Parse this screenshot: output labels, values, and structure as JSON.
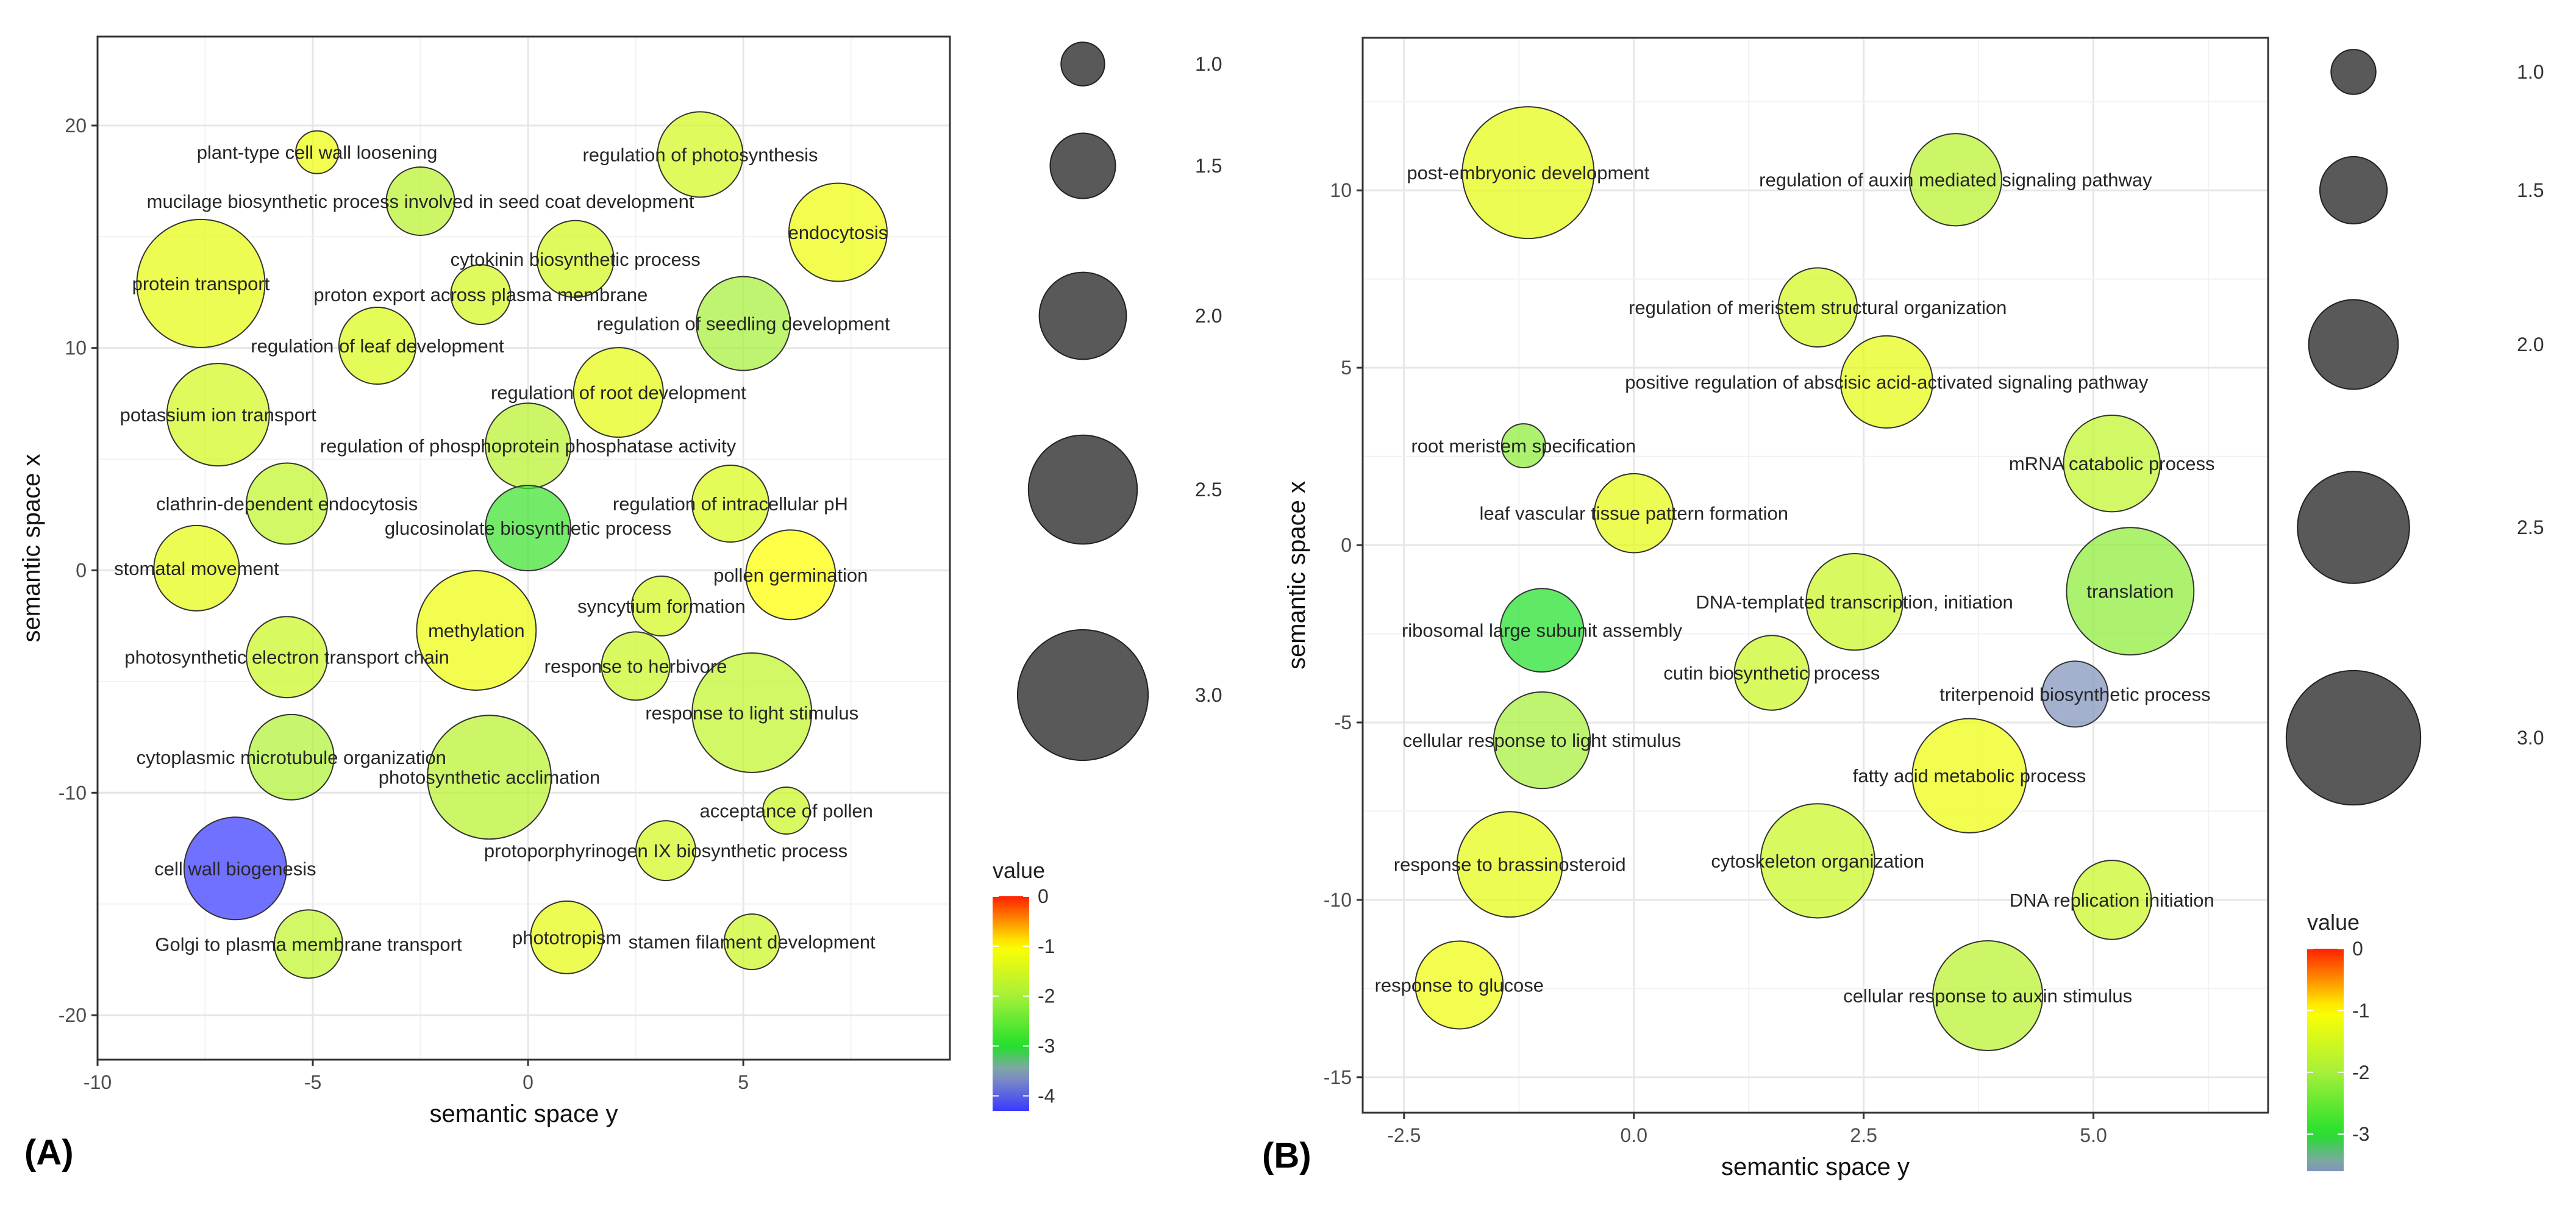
{
  "chart_data": [
    {
      "type": "scatter",
      "panel_label": "(A)",
      "xlabel": "semantic space y",
      "ylabel": "semantic space x",
      "xlim": [
        -10,
        9.8
      ],
      "ylim": [
        -22,
        24
      ],
      "x_ticks": [
        -10,
        -5,
        0,
        5
      ],
      "x_tick_labels": [
        "-10",
        "-5",
        "0",
        "5"
      ],
      "y_ticks": [
        -20,
        -10,
        0,
        10,
        20
      ],
      "y_tick_labels": [
        "-20",
        "-10",
        "0",
        "10",
        "20"
      ],
      "grid": true,
      "size_legend": {
        "values": [
          1.0,
          1.5,
          2.0,
          2.5,
          3.0
        ],
        "labels": [
          "1.0",
          "1.5",
          "2.0",
          "2.5",
          "3.0"
        ]
      },
      "color_legend": {
        "title": "value",
        "range": [
          -4.3,
          0
        ],
        "ticks": [
          0,
          -1,
          -2,
          -3,
          -4
        ],
        "tick_labels": [
          "0",
          "-1",
          "-2",
          "-3",
          "-4"
        ]
      },
      "points": [
        {
          "label": "plant-type cell wall loosening",
          "x": -4.9,
          "y": 18.8,
          "size": 1.0,
          "value": -1.2
        },
        {
          "label": "regulation of photosynthesis",
          "x": 4.0,
          "y": 18.7,
          "size": 2.0,
          "value": -1.5
        },
        {
          "label": "mucilage biosynthetic process involved in seed coat development",
          "x": -2.5,
          "y": 16.6,
          "size": 1.6,
          "value": -1.8
        },
        {
          "label": "endocytosis",
          "x": 7.2,
          "y": 15.2,
          "size": 2.3,
          "value": -1.2
        },
        {
          "label": "cytokinin biosynthetic process",
          "x": 1.1,
          "y": 14.0,
          "size": 1.8,
          "value": -1.5
        },
        {
          "label": "protein transport",
          "x": -7.6,
          "y": 12.9,
          "size": 3.0,
          "value": -1.3
        },
        {
          "label": "proton export across plasma membrane",
          "x": -1.1,
          "y": 12.4,
          "size": 1.4,
          "value": -1.5
        },
        {
          "label": "regulation of seedling development",
          "x": 5.0,
          "y": 11.1,
          "size": 2.2,
          "value": -2.0
        },
        {
          "label": "regulation of leaf development",
          "x": -3.5,
          "y": 10.1,
          "size": 1.8,
          "value": -1.4
        },
        {
          "label": "regulation of root development",
          "x": 2.1,
          "y": 8.0,
          "size": 2.1,
          "value": -1.3
        },
        {
          "label": "potassium ion transport",
          "x": -7.2,
          "y": 7.0,
          "size": 2.4,
          "value": -1.5
        },
        {
          "label": "regulation of phosphoprotein phosphatase activity",
          "x": 0.0,
          "y": 5.6,
          "size": 2.0,
          "value": -1.8
        },
        {
          "label": "clathrin-dependent endocytosis",
          "x": -5.6,
          "y": 3.0,
          "size": 1.9,
          "value": -1.7
        },
        {
          "label": "regulation of intracellular pH",
          "x": 4.7,
          "y": 3.0,
          "size": 1.8,
          "value": -1.4
        },
        {
          "label": "glucosinolate biosynthetic process",
          "x": 0.0,
          "y": 1.9,
          "size": 2.0,
          "value": -2.8
        },
        {
          "label": "stomatal movement",
          "x": -7.7,
          "y": 0.1,
          "size": 2.0,
          "value": -1.3
        },
        {
          "label": "pollen germination",
          "x": 6.1,
          "y": -0.2,
          "size": 2.1,
          "value": -1.0
        },
        {
          "label": "syncytium formation",
          "x": 3.1,
          "y": -1.6,
          "size": 1.4,
          "value": -1.5
        },
        {
          "label": "methylation",
          "x": -1.2,
          "y": -2.7,
          "size": 2.8,
          "value": -1.2
        },
        {
          "label": "photosynthetic electron transport chain",
          "x": -5.6,
          "y": -3.9,
          "size": 1.9,
          "value": -1.6
        },
        {
          "label": "response to herbivore",
          "x": 2.5,
          "y": -4.3,
          "size": 1.6,
          "value": -1.6
        },
        {
          "label": "response to light stimulus",
          "x": 5.2,
          "y": -6.4,
          "size": 2.8,
          "value": -1.7
        },
        {
          "label": "cytoplasmic microtubule organization",
          "x": -5.5,
          "y": -8.4,
          "size": 2.0,
          "value": -1.9
        },
        {
          "label": "photosynthetic acclimation",
          "x": -0.9,
          "y": -9.3,
          "size": 2.9,
          "value": -1.8
        },
        {
          "label": "acceptance of pollen",
          "x": 6.0,
          "y": -10.8,
          "size": 1.1,
          "value": -1.6
        },
        {
          "label": "protoporphyrinogen IX biosynthetic process",
          "x": 3.2,
          "y": -12.6,
          "size": 1.4,
          "value": -1.5
        },
        {
          "label": "cell wall biogenesis",
          "x": -6.8,
          "y": -13.4,
          "size": 2.4,
          "value": -4.3
        },
        {
          "label": "Golgi to plasma membrane transport",
          "x": -5.1,
          "y": -16.8,
          "size": 1.6,
          "value": -1.7
        },
        {
          "label": "phototropism",
          "x": 0.9,
          "y": -16.5,
          "size": 1.7,
          "value": -1.3
        },
        {
          "label": "stamen filament development",
          "x": 5.2,
          "y": -16.7,
          "size": 1.3,
          "value": -1.6
        }
      ]
    },
    {
      "type": "scatter",
      "panel_label": "(B)",
      "xlabel": "semantic space y",
      "ylabel": "semantic space x",
      "xlim": [
        -2.95,
        6.9
      ],
      "ylim": [
        -16.0,
        14.3
      ],
      "x_ticks": [
        -2.5,
        0.0,
        2.5,
        5.0
      ],
      "x_tick_labels": [
        "-2.5",
        "0.0",
        "2.5",
        "5.0"
      ],
      "y_ticks": [
        10,
        5,
        0,
        -5,
        -10,
        -15
      ],
      "y_tick_labels": [
        "10",
        "5",
        "0",
        "-5",
        "-10",
        "-15"
      ],
      "grid": true,
      "size_legend": {
        "values": [
          1.0,
          1.5,
          2.0,
          2.5,
          3.0
        ],
        "labels": [
          "1.0",
          "1.5",
          "2.0",
          "2.5",
          "3.0"
        ]
      },
      "color_legend": {
        "title": "value",
        "range": [
          -3.6,
          0
        ],
        "ticks": [
          0,
          -1,
          -2,
          -3
        ],
        "tick_labels": [
          "0",
          "-1",
          "-2",
          "-3"
        ]
      },
      "points": [
        {
          "label": "post-embryonic development",
          "x": -1.15,
          "y": 10.5,
          "size": 3.0,
          "value": -1.3
        },
        {
          "label": "regulation of auxin mediated signaling pathway",
          "x": 3.5,
          "y": 10.3,
          "size": 2.1,
          "value": -1.8
        },
        {
          "label": "regulation of meristem structural organization",
          "x": 2.0,
          "y": 6.7,
          "size": 1.8,
          "value": -1.5
        },
        {
          "label": "positive regulation of abscisic acid-activated signaling pathway",
          "x": 2.75,
          "y": 4.6,
          "size": 2.1,
          "value": -1.3
        },
        {
          "label": "root meristem specification",
          "x": -1.2,
          "y": 2.8,
          "size": 1.0,
          "value": -2.2
        },
        {
          "label": "mRNA catabolic process",
          "x": 5.2,
          "y": 2.3,
          "size": 2.2,
          "value": -1.7
        },
        {
          "label": "leaf vascular tissue pattern formation",
          "x": 0.0,
          "y": 0.9,
          "size": 1.8,
          "value": -1.3
        },
        {
          "label": "translation",
          "x": 5.4,
          "y": -1.3,
          "size": 2.9,
          "value": -2.2
        },
        {
          "label": "DNA-templated transcription, initiation",
          "x": 2.4,
          "y": -1.6,
          "size": 2.2,
          "value": -1.6
        },
        {
          "label": "ribosomal large subunit assembly",
          "x": -1.0,
          "y": -2.4,
          "size": 1.9,
          "value": -3.0
        },
        {
          "label": "cutin biosynthetic process",
          "x": 1.5,
          "y": -3.6,
          "size": 1.7,
          "value": -1.6
        },
        {
          "label": "triterpenoid biosynthetic process",
          "x": 4.8,
          "y": -4.2,
          "size": 1.5,
          "value": -3.6
        },
        {
          "label": "cellular response to light stimulus",
          "x": -1.0,
          "y": -5.5,
          "size": 2.2,
          "value": -2.0
        },
        {
          "label": "fatty acid metabolic process",
          "x": 3.65,
          "y": -6.5,
          "size": 2.6,
          "value": -1.2
        },
        {
          "label": "response to brassinosteroid",
          "x": -1.35,
          "y": -9.0,
          "size": 2.4,
          "value": -1.3
        },
        {
          "label": "cytoskeleton organization",
          "x": 2.0,
          "y": -8.9,
          "size": 2.6,
          "value": -1.6
        },
        {
          "label": "DNA replication initiation",
          "x": 5.2,
          "y": -10.0,
          "size": 1.8,
          "value": -1.6
        },
        {
          "label": "response to glucose",
          "x": -1.9,
          "y": -12.4,
          "size": 2.0,
          "value": -1.2
        },
        {
          "label": "cellular response to auxin stimulus",
          "x": 3.85,
          "y": -12.7,
          "size": 2.5,
          "value": -1.8
        }
      ]
    }
  ]
}
